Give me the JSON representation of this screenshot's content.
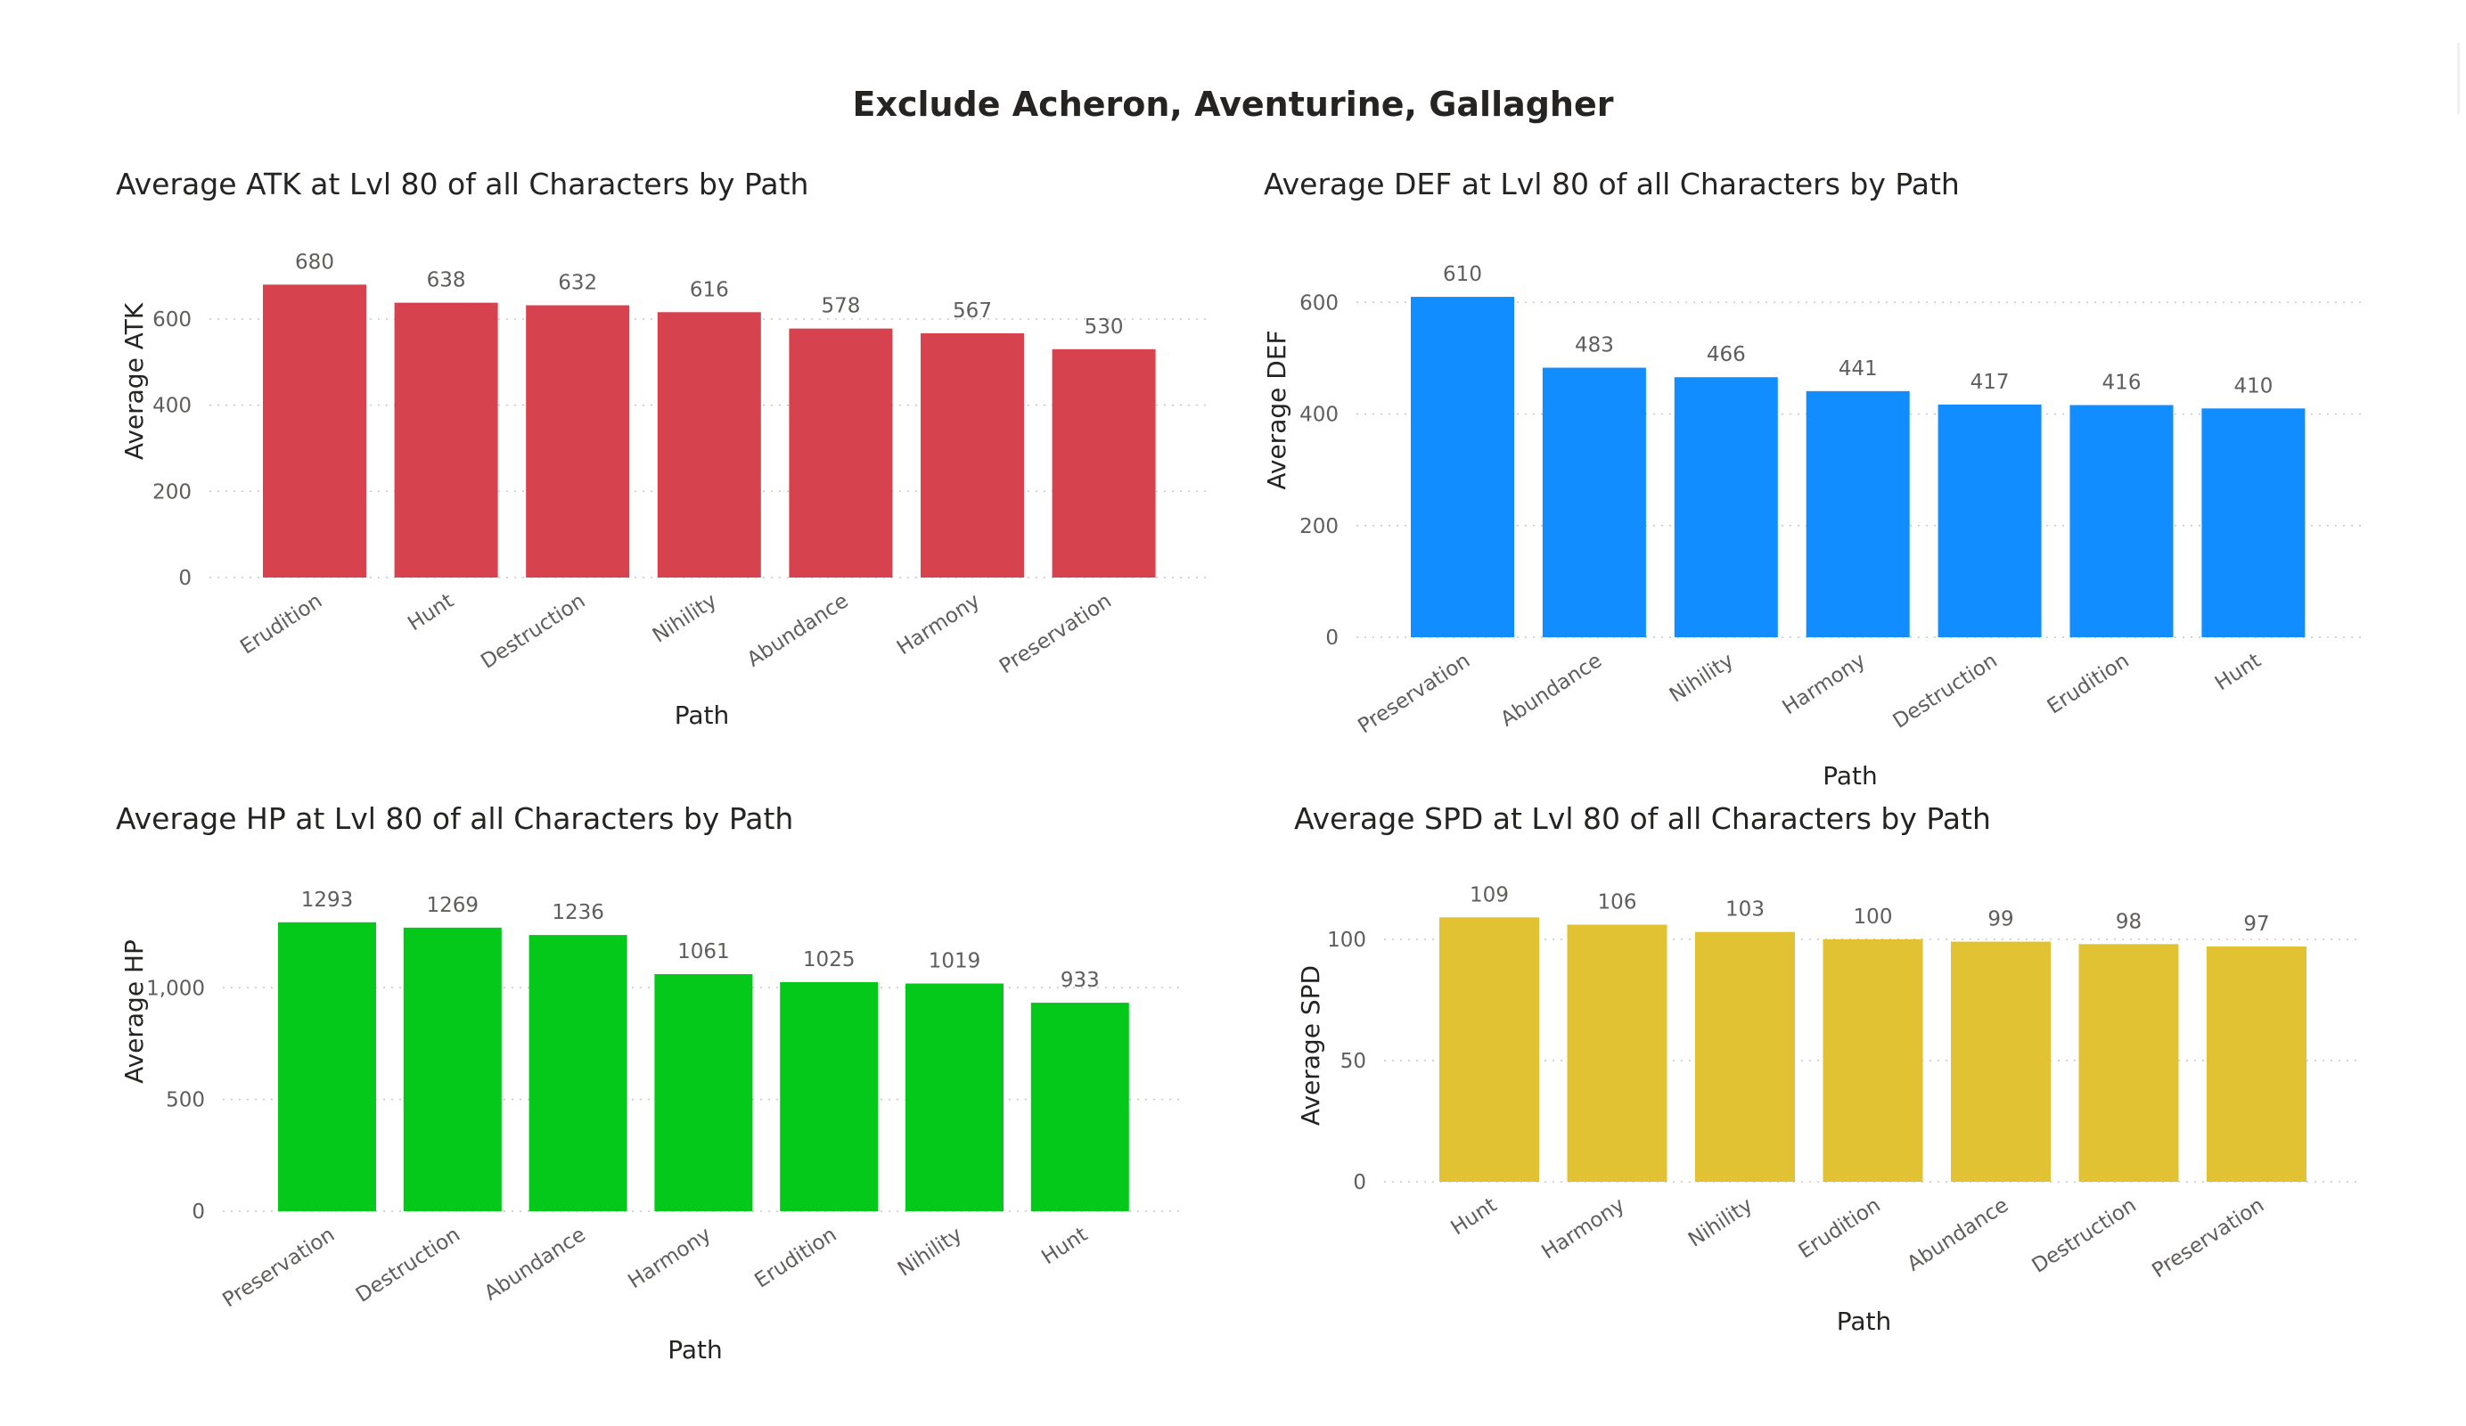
{
  "page": {
    "title": "Exclude Acheron, Aventurine, Gallagher"
  },
  "chart_data": [
    {
      "id": "atk",
      "type": "bar",
      "title": "Average ATK at Lvl 80 of all Characters by Path",
      "xlabel": "Path",
      "ylabel": "Average ATK",
      "categories": [
        "Erudition",
        "Hunt",
        "Destruction",
        "Nihility",
        "Abundance",
        "Harmony",
        "Preservation"
      ],
      "values": [
        680,
        638,
        632,
        616,
        578,
        567,
        530
      ],
      "yticks": [
        0,
        200,
        400,
        600
      ],
      "ytick_labels": [
        "0",
        "200",
        "400",
        "600"
      ],
      "ylim": [
        0,
        720
      ],
      "grid": true,
      "color": "#d6434f"
    },
    {
      "id": "def",
      "type": "bar",
      "title": "Average DEF at Lvl 80 of all Characters by Path",
      "xlabel": "Path",
      "ylabel": "Average DEF",
      "categories": [
        "Preservation",
        "Abundance",
        "Nihility",
        "Harmony",
        "Destruction",
        "Erudition",
        "Hunt"
      ],
      "values": [
        610,
        483,
        466,
        441,
        417,
        416,
        410
      ],
      "yticks": [
        0,
        200,
        400,
        600
      ],
      "ytick_labels": [
        "0",
        "200",
        "400",
        "600"
      ],
      "ylim": [
        0,
        650
      ],
      "grid": true,
      "color": "#118dff"
    },
    {
      "id": "hp",
      "type": "bar",
      "title": "Average HP at Lvl 80 of all Characters by Path",
      "xlabel": "Path",
      "ylabel": "Average HP",
      "categories": [
        "Preservation",
        "Destruction",
        "Abundance",
        "Harmony",
        "Erudition",
        "Nihility",
        "Hunt"
      ],
      "values": [
        1293,
        1269,
        1236,
        1061,
        1025,
        1019,
        933
      ],
      "yticks": [
        0,
        500,
        1000
      ],
      "ytick_labels": [
        "0",
        "500",
        "1,000"
      ],
      "ylim": [
        0,
        1380
      ],
      "grid": true,
      "color": "#04c91b"
    },
    {
      "id": "spd",
      "type": "bar",
      "title": "Average SPD at Lvl 80 of all Characters by Path",
      "xlabel": "Path",
      "ylabel": "Average SPD",
      "categories": [
        "Hunt",
        "Harmony",
        "Nihility",
        "Erudition",
        "Abundance",
        "Destruction",
        "Preservation"
      ],
      "values": [
        109,
        106,
        103,
        100,
        99,
        98,
        97
      ],
      "yticks": [
        0,
        50,
        100
      ],
      "ytick_labels": [
        "0",
        "50",
        "100"
      ],
      "ylim": [
        0,
        115
      ],
      "grid": true,
      "color": "#e0c232"
    }
  ]
}
